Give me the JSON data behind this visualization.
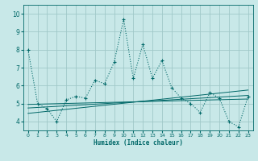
{
  "xlabel": "Humidex (Indice chaleur)",
  "xlim": [
    -0.5,
    23.5
  ],
  "ylim": [
    3.5,
    10.5
  ],
  "yticks": [
    4,
    5,
    6,
    7,
    8,
    9,
    10
  ],
  "xticks": [
    0,
    1,
    2,
    3,
    4,
    5,
    6,
    7,
    8,
    9,
    10,
    11,
    12,
    13,
    14,
    15,
    16,
    17,
    18,
    19,
    20,
    21,
    22,
    23
  ],
  "background_color": "#c8e8e8",
  "grid_color": "#a0c8c8",
  "line_color": "#006868",
  "series1_x": [
    0,
    1,
    2,
    3,
    4,
    5,
    6,
    7,
    8,
    9,
    10,
    11,
    12,
    13,
    14,
    15,
    16,
    17,
    18,
    19,
    20,
    21,
    22,
    23
  ],
  "series1_y": [
    8.0,
    5.0,
    4.7,
    4.0,
    5.2,
    5.4,
    5.3,
    6.3,
    6.1,
    7.3,
    9.7,
    6.4,
    8.3,
    6.4,
    7.4,
    5.9,
    5.3,
    5.0,
    4.5,
    5.6,
    5.3,
    4.0,
    3.7,
    5.4
  ],
  "trend1_x": [
    0,
    23
  ],
  "trend1_y": [
    4.75,
    5.45
  ],
  "trend2_x": [
    0,
    23
  ],
  "trend2_y": [
    4.45,
    5.75
  ],
  "trend3_x": [
    0,
    23
  ],
  "trend3_y": [
    4.95,
    5.25
  ]
}
